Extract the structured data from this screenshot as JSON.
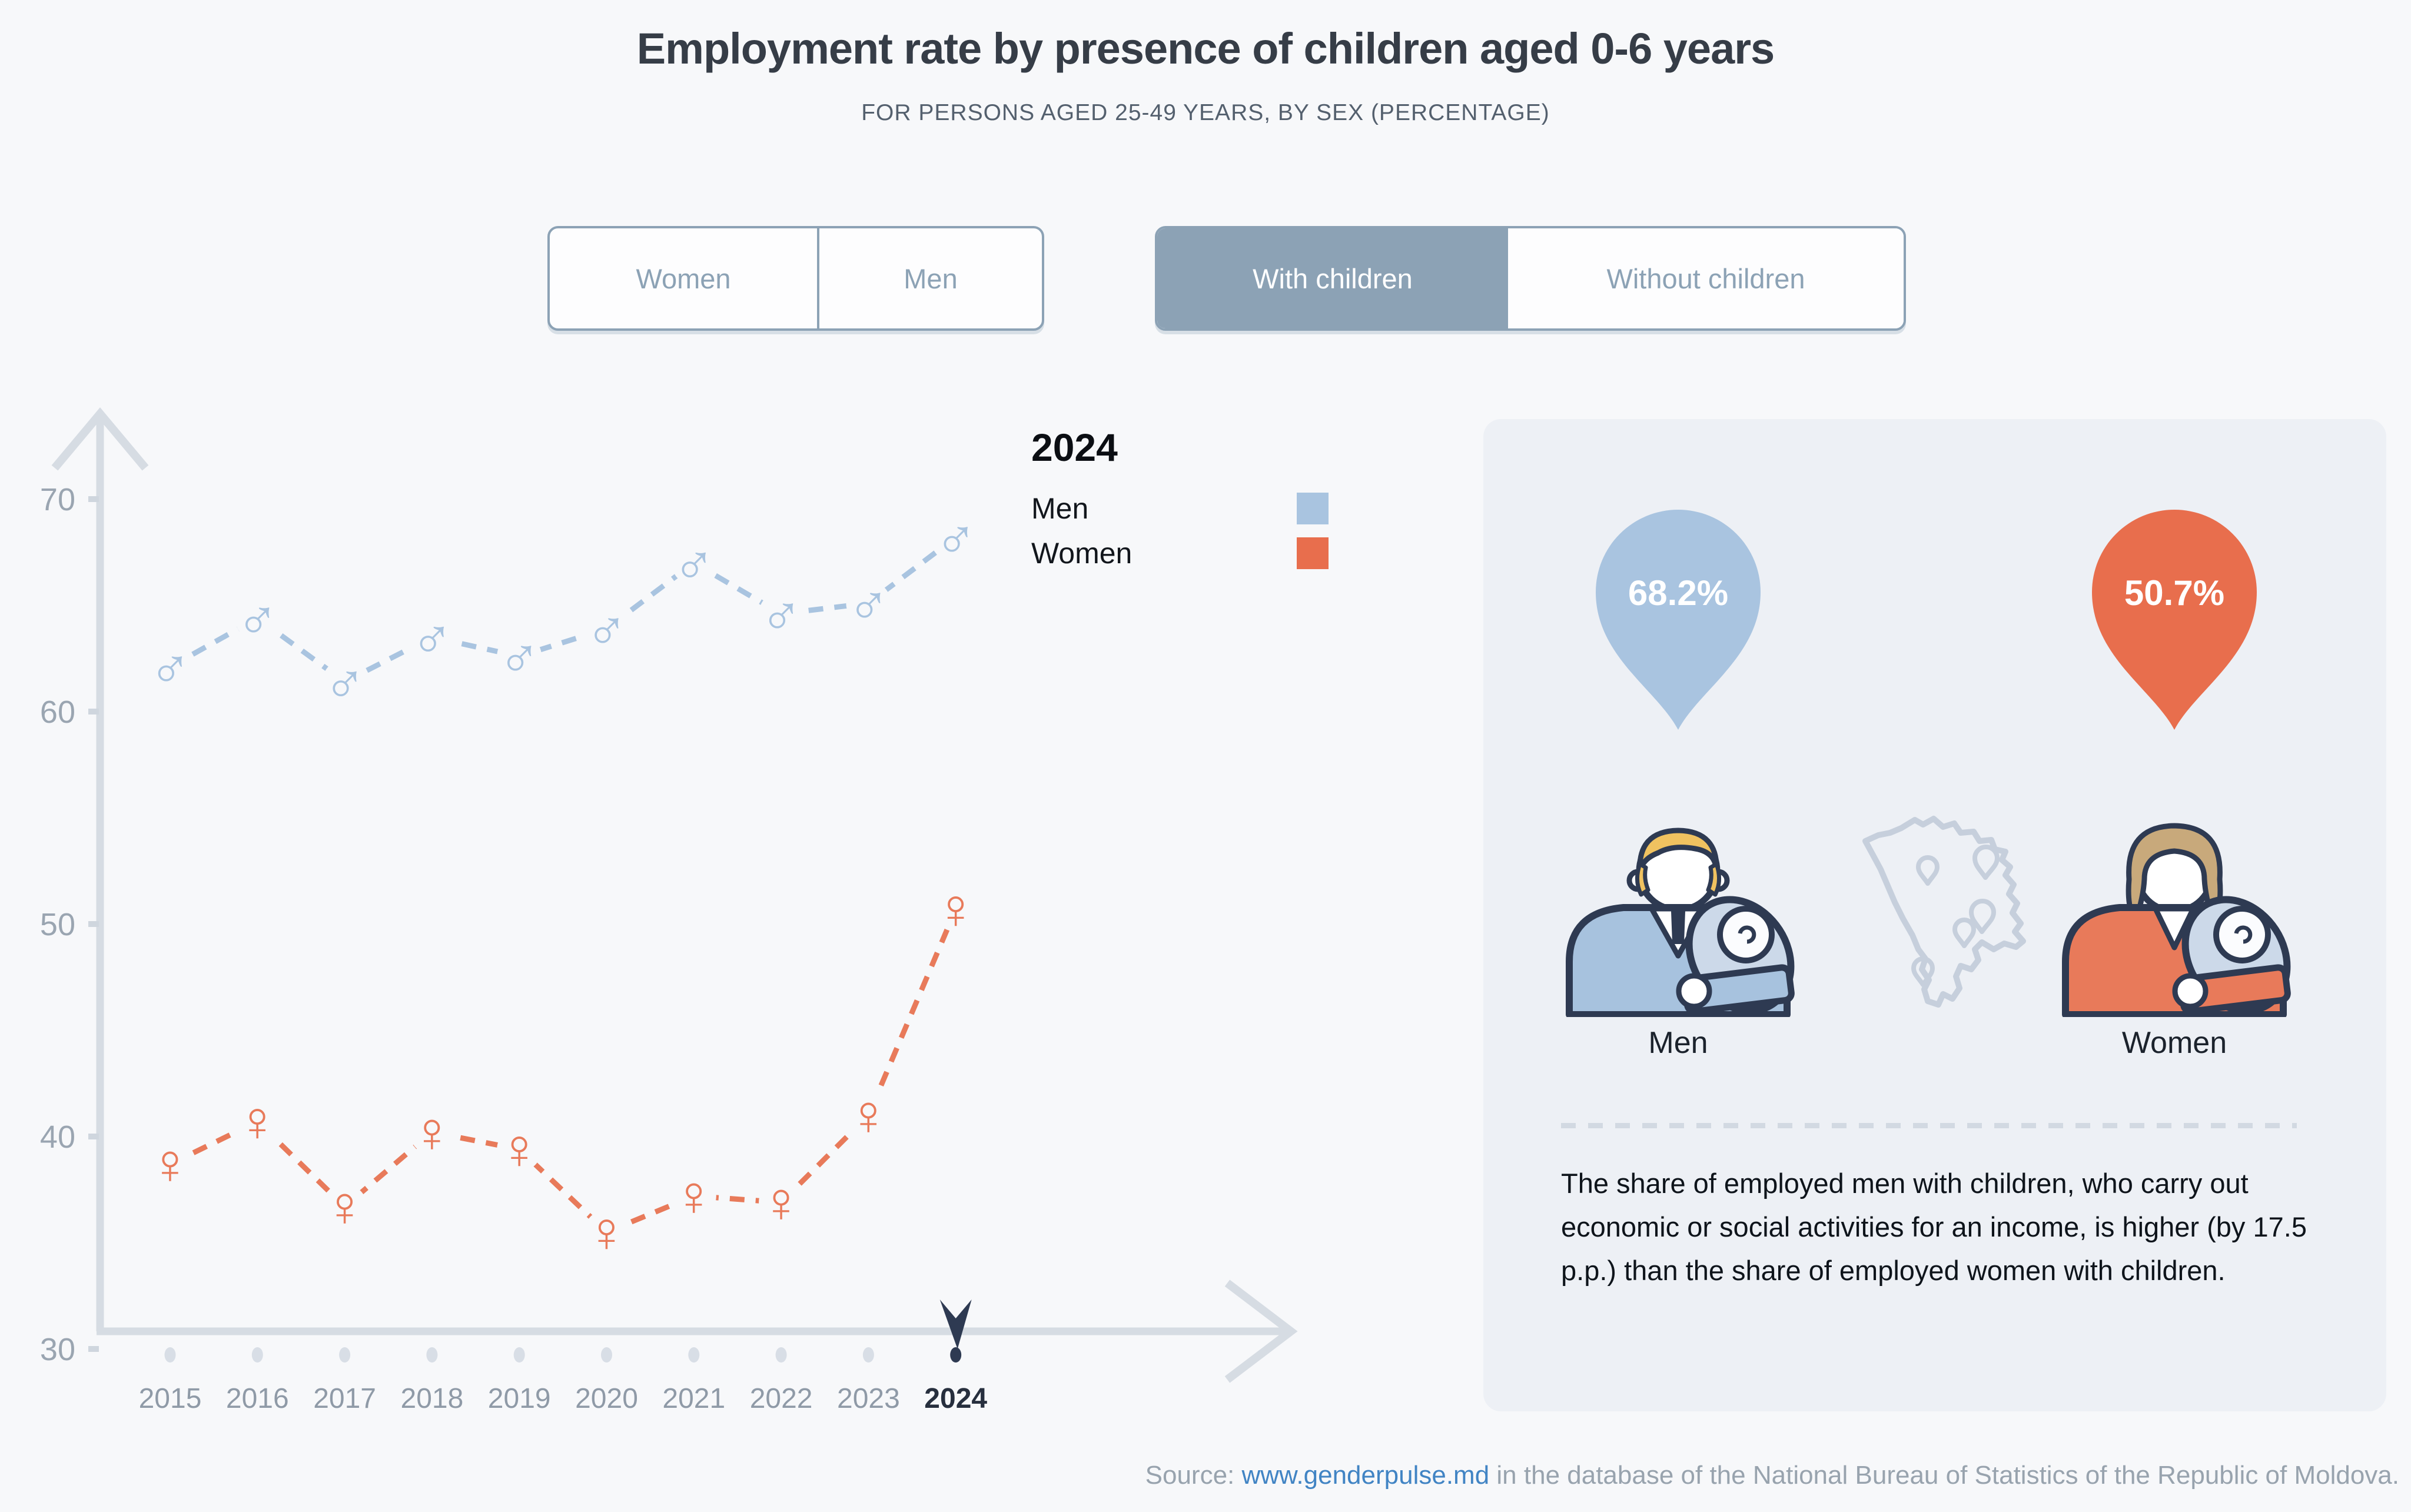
{
  "page": {
    "title": "Employment rate by presence of children aged 0-6 years",
    "subtitle": "FOR PERSONS AGED 25-49 YEARS, BY SEX (PERCENTAGE)"
  },
  "controls": {
    "sex_toggle": {
      "options": [
        "Women",
        "Men"
      ],
      "selected": ""
    },
    "children_toggle": {
      "options": [
        "With children",
        "Without children"
      ],
      "selected": "With children"
    }
  },
  "chart_data": {
    "type": "line",
    "title": "Employment rate by presence of children aged 0-6 years",
    "xlabel": "",
    "ylabel": "",
    "x": [
      2015,
      2016,
      2017,
      2018,
      2019,
      2020,
      2021,
      2022,
      2023,
      2024
    ],
    "series": [
      {
        "name": "Men",
        "marker": "male",
        "color": "#a9c4e0",
        "values": [
          62.1,
          64.4,
          61.4,
          63.5,
          62.6,
          63.9,
          67.0,
          64.6,
          65.1,
          68.2
        ]
      },
      {
        "name": "Women",
        "marker": "female",
        "color": "#e87a5a",
        "values": [
          38.7,
          40.7,
          36.7,
          40.2,
          39.4,
          35.5,
          37.2,
          36.9,
          41.0,
          50.7
        ]
      }
    ],
    "ylim": [
      30,
      72
    ],
    "yticks": [
      70,
      60,
      50,
      40,
      30
    ],
    "grid": false,
    "line_style": "dashed",
    "selected_year": 2024,
    "legend": {
      "position": "top-right-of-plot",
      "title": "2024",
      "entries": [
        {
          "label": "Men",
          "color": "#a9c4e0"
        },
        {
          "label": "Women",
          "color": "#e86e4d"
        }
      ]
    }
  },
  "panel": {
    "men": {
      "value": "68.2%",
      "label": "Men"
    },
    "women": {
      "value": "50.7%",
      "label": "Women"
    },
    "note": "The share of employed men with children, who carry out economic or social activities for an income, is higher (by 17.5 p.p.) than the share of employed women with children."
  },
  "source": {
    "prefix": "Source: ",
    "link": "www.genderpulse.md",
    "suffix": " in the database of the National Bureau of Statistics of the Republic of Moldova."
  },
  "colors": {
    "background": "#f7f8fa",
    "panel": "#edf0f5",
    "navy": "#2e3a52",
    "steel": "#8ca2b5",
    "men": "#a9c4e0",
    "women": "#e87a5a",
    "women_accent": "#e86e4d",
    "axis": "#d6dce3",
    "link": "#4184c4"
  }
}
